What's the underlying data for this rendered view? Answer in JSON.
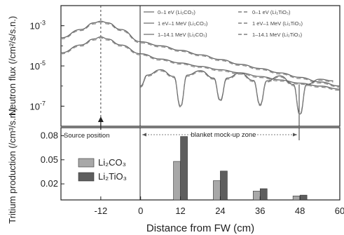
{
  "chart_data": [
    {
      "type": "line",
      "panel": "top",
      "ylabel": "Neutron flux (/cm²/s/s.n.)",
      "yscale": "log",
      "ylim": [
        1e-08,
        0.01
      ],
      "xlim": [
        -24,
        60
      ],
      "yticks": [
        {
          "value": 0.001,
          "base": "10",
          "exp": "-3"
        },
        {
          "value": 1e-05,
          "base": "10",
          "exp": "-5"
        },
        {
          "value": 1e-07,
          "base": "10",
          "exp": "-7"
        }
      ],
      "legend": [
        {
          "label": "0–1 eV (Li₂CO₃)",
          "style": "solid"
        },
        {
          "label": "1 eV–1 MeV (Li₂CO₃)",
          "style": "solid"
        },
        {
          "label": "1–14.1 MeV (Li₂CO₃)",
          "style": "solid"
        },
        {
          "label": "0–1 eV (Li₂TiO₃)",
          "style": "dashed"
        },
        {
          "label": "1 eV–1 MeV (Li₂TiO₃)",
          "style": "dashed"
        },
        {
          "label": "1–14.1 MeV (Li₂TiO₃)",
          "style": "dashed"
        }
      ],
      "series": [
        {
          "name": "1–14.1 MeV",
          "x": [
            -24,
            -18,
            -14,
            -12,
            -10,
            -6,
            0,
            6,
            12,
            18,
            24,
            30,
            36,
            42,
            48,
            54,
            60
          ],
          "y": [
            0.00025,
            0.00065,
            0.0014,
            0.0017,
            0.0014,
            0.00065,
            0.00016,
            0.0001,
            6e-05,
            3.6e-05,
            2.1e-05,
            1.2e-05,
            7.5e-06,
            4.5e-06,
            2.7e-06,
            1.6e-06,
            1e-06
          ]
        },
        {
          "name": "1 eV–1 MeV",
          "x": [
            -24,
            -18,
            -14,
            -12,
            -10,
            -6,
            0,
            6,
            12,
            18,
            24,
            30,
            36,
            42,
            48,
            54,
            60
          ],
          "y": [
            4.5e-05,
            0.00011,
            0.00022,
            0.00028,
            0.00022,
            0.00011,
            4e-05,
            2.2e-05,
            1.4e-05,
            9.5e-06,
            6.5e-06,
            4.5e-06,
            3e-06,
            2e-06,
            1.4e-06,
            1e-06,
            7e-07
          ]
        },
        {
          "name": "0–1 eV",
          "x": [
            0,
            2,
            6,
            10,
            12,
            14,
            18,
            22,
            24,
            26,
            30,
            34,
            36,
            38,
            42,
            46,
            48,
            50,
            54,
            58
          ],
          "y": [
            1e-06,
            3.5e-06,
            6.5e-06,
            3e-06,
            1e-07,
            3.5e-06,
            5.8e-06,
            2.5e-06,
            2e-07,
            2.5e-06,
            4.5e-06,
            1.9e-06,
            1.2e-07,
            1.8e-06,
            3.2e-06,
            1.2e-06,
            4e-08,
            1.2e-06,
            2.2e-06,
            1.8e-06
          ]
        }
      ],
      "annotations": {
        "vline_x": -12,
        "source_label": "Source position",
        "zone_label": "blanket mock-up zone"
      }
    },
    {
      "type": "bar",
      "panel": "bottom",
      "ylabel": "Tritium production (/cm³/s.n.)",
      "xlabel": "Distance from FW (cm)",
      "xlim": [
        -24,
        60
      ],
      "ylim": [
        0,
        0.09
      ],
      "yticks": [
        "0.02",
        "0.05",
        "0.08"
      ],
      "ytick_values": [
        0.02,
        0.05,
        0.08
      ],
      "xticks": [
        "-12",
        "0",
        "12",
        "24",
        "36",
        "48",
        "60"
      ],
      "xtick_values": [
        -12,
        0,
        12,
        24,
        36,
        48,
        60
      ],
      "categories": [
        "12",
        "24",
        "36",
        "48"
      ],
      "series": [
        {
          "name": "Li₂CO₃",
          "color": "#a8a8a8",
          "values": [
            0.048,
            0.024,
            0.011,
            0.005
          ]
        },
        {
          "name": "Li₂TiO₃",
          "color": "#5e5e5e",
          "values": [
            0.079,
            0.036,
            0.014,
            0.006
          ]
        }
      ]
    }
  ]
}
